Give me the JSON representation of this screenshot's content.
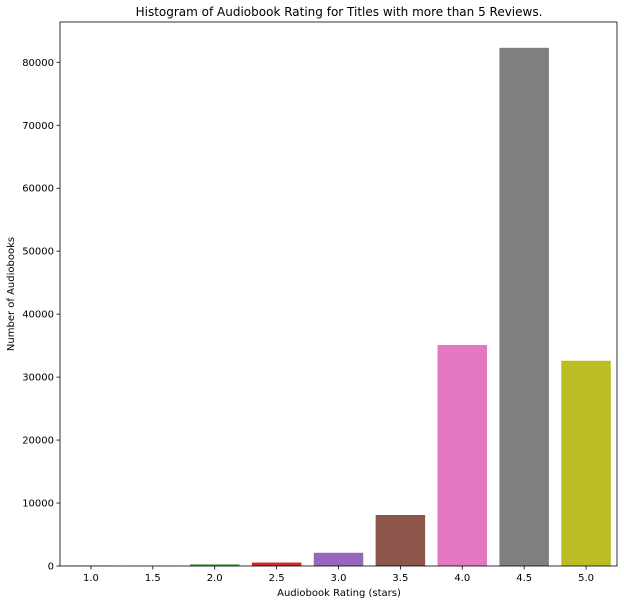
{
  "chart_data": {
    "type": "bar",
    "title": "Histogram of Audiobook Rating for Titles with more than 5 Reviews.",
    "xlabel": "Audiobook Rating (stars)",
    "ylabel": "Number of Audiobooks",
    "categories": [
      "1.0",
      "1.5",
      "2.0",
      "2.5",
      "3.0",
      "3.5",
      "4.0",
      "4.5",
      "5.0"
    ],
    "values": [
      60,
      40,
      250,
      550,
      2100,
      8100,
      35100,
      82300,
      32600
    ],
    "colors": [
      "#1f77b4",
      "#ff7f0e",
      "#2ca02c",
      "#d62728",
      "#9467bd",
      "#8c564b",
      "#e377c2",
      "#7f7f7f",
      "#bcbd22"
    ],
    "ylim": [
      0,
      86400
    ],
    "yticks": [
      0,
      10000,
      20000,
      30000,
      40000,
      50000,
      60000,
      70000,
      80000
    ],
    "grid": false,
    "legend": "none"
  }
}
